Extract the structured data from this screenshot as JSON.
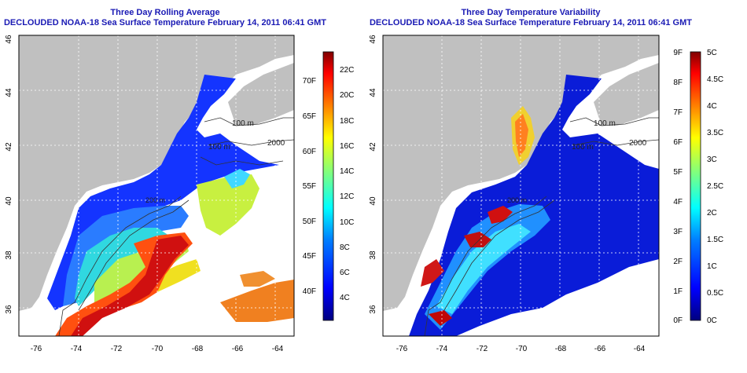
{
  "left_panel": {
    "title_line1": "Three Day Rolling Average",
    "title_line2": "DECLOUDED NOAA-18 Sea Surface Temperature February 14, 2011 06:41 GMT",
    "colorbar_c": [
      "22C",
      "20C",
      "18C",
      "16C",
      "14C",
      "12C",
      "10C",
      "8C",
      "6C",
      "4C"
    ],
    "colorbar_f": [
      "70F",
      "65F",
      "60F",
      "55F",
      "50F",
      "45F",
      "40F"
    ],
    "contour_labels": [
      "100 m",
      "100 m",
      "200 m",
      "2000",
      "200 m",
      "100 m"
    ]
  },
  "right_panel": {
    "title_line1": "Three Day Temperature Variability",
    "title_line2": "DECLOUDED NOAA-18 Sea Surface Temperature February 14, 2011 06:41 GMT",
    "colorbar_c": [
      "5C",
      "4.5C",
      "4C",
      "3.5C",
      "3C",
      "2.5C",
      "2C",
      "1.5C",
      "1C",
      "0.5C",
      "0C"
    ],
    "colorbar_f": [
      "9F",
      "8F",
      "7F",
      "6F",
      "5F",
      "4F",
      "3F",
      "2F",
      "1F",
      "0F"
    ],
    "contour_labels": [
      "100 m",
      "100 m",
      "2000",
      "200 m",
      "200 m"
    ]
  },
  "axes": {
    "lon_ticks": [
      "-76",
      "-74",
      "-72",
      "-70",
      "-68",
      "-66",
      "-64"
    ],
    "lat_ticks": [
      "36",
      "38",
      "40",
      "42",
      "44",
      "46"
    ]
  },
  "colors": {
    "title": "#1a1ab4",
    "land": "#c0c0c0",
    "sst_scale": [
      "#00007f",
      "#0000ff",
      "#007fff",
      "#00ffff",
      "#7fff7f",
      "#ffff00",
      "#ff7f00",
      "#ff0000",
      "#7f0000"
    ]
  }
}
